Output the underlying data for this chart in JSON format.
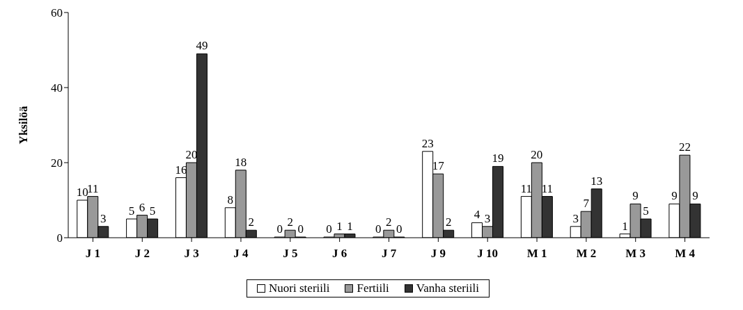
{
  "chart_data": {
    "type": "bar",
    "ylabel": "Yksilöä",
    "categories": [
      "J 1",
      "J 2",
      "J 3",
      "J 4",
      "J 5",
      "J 6",
      "J 7",
      "J 9",
      "J 10",
      "M 1",
      "M 2",
      "M 3",
      "M 4"
    ],
    "series": [
      {
        "name": "Nuori steriili",
        "color": "#ffffff",
        "values": [
          10,
          5,
          16,
          8,
          0,
          0,
          0,
          23,
          4,
          11,
          3,
          1,
          9
        ]
      },
      {
        "name": "Fertiili",
        "color": "#999999",
        "values": [
          11,
          6,
          20,
          18,
          2,
          1,
          2,
          17,
          3,
          20,
          7,
          9,
          22
        ]
      },
      {
        "name": "Vanha steriili",
        "color": "#333333",
        "values": [
          3,
          5,
          49,
          2,
          0,
          1,
          0,
          2,
          19,
          11,
          13,
          5,
          9
        ]
      }
    ],
    "ylim": [
      0,
      60
    ],
    "yticks": [
      0,
      20,
      40,
      60
    ],
    "grid": false,
    "legend": "bottom",
    "data_labels": true
  }
}
